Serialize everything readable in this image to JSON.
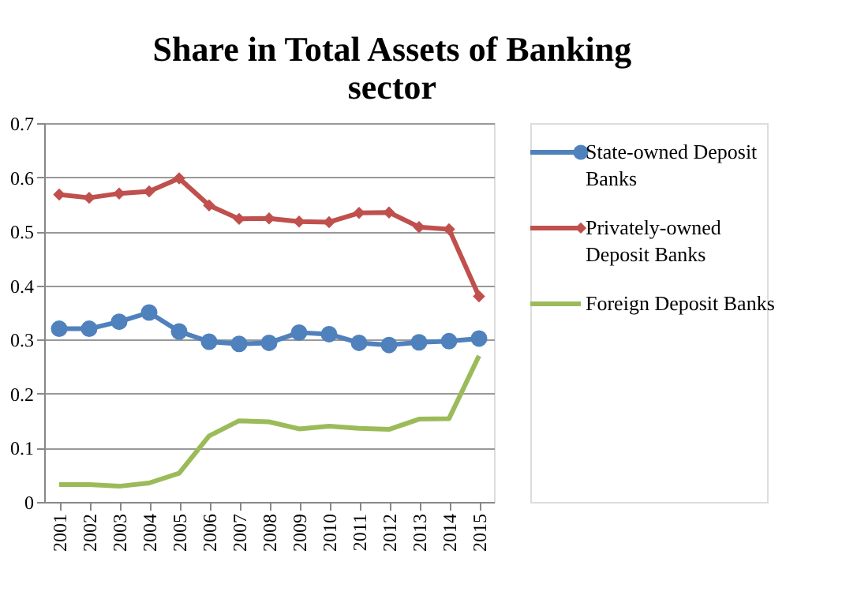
{
  "chart_data": {
    "type": "line",
    "title": "Share in Total Assets of Banking sector",
    "categories": [
      "2001",
      "2002",
      "2003",
      "2004",
      "2005",
      "2006",
      "2007",
      "2008",
      "2009",
      "2010",
      "2011",
      "2012",
      "2013",
      "2014",
      "2015"
    ],
    "series": [
      {
        "name": "State-owned Deposit Banks",
        "color": "#4f81bd",
        "marker": "circle",
        "values": [
          0.32,
          0.32,
          0.333,
          0.35,
          0.315,
          0.296,
          0.292,
          0.294,
          0.313,
          0.31,
          0.294,
          0.29,
          0.295,
          0.297,
          0.302
        ]
      },
      {
        "name": "Privately-owned Deposit Banks",
        "color": "#c0504d",
        "marker": "diamond",
        "values": [
          0.568,
          0.562,
          0.57,
          0.574,
          0.598,
          0.548,
          0.523,
          0.524,
          0.518,
          0.517,
          0.534,
          0.535,
          0.508,
          0.504,
          0.38
        ]
      },
      {
        "name": "Foreign Deposit Banks",
        "color": "#9bbb59",
        "marker": "none",
        "values": [
          0.032,
          0.032,
          0.029,
          0.035,
          0.053,
          0.122,
          0.15,
          0.148,
          0.135,
          0.14,
          0.136,
          0.134,
          0.153,
          0.154,
          0.27
        ]
      }
    ],
    "ylim": [
      0,
      0.7
    ],
    "yticks": [
      0,
      0.1,
      0.2,
      0.3,
      0.4,
      0.5,
      0.6,
      0.7
    ],
    "grid": "y",
    "legend": "right"
  }
}
